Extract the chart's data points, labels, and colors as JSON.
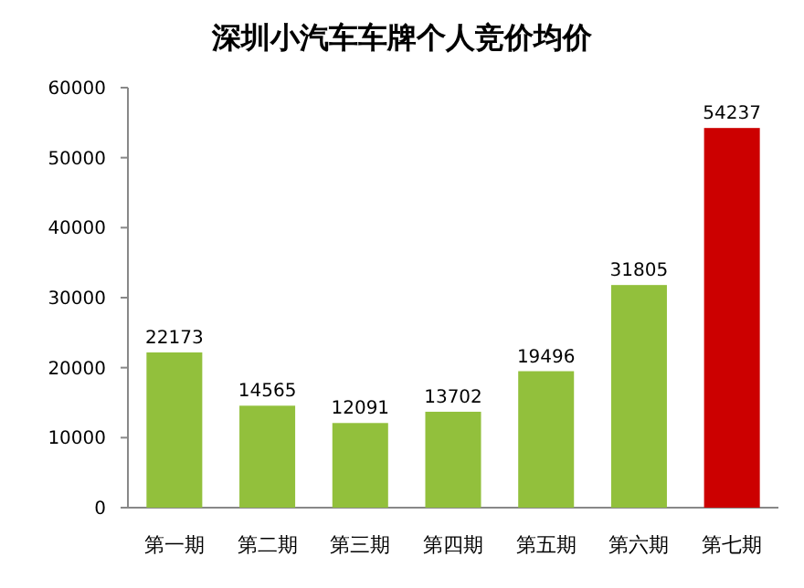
{
  "chart_data": {
    "type": "bar",
    "title": "深圳小汽车车牌个人竞价均价",
    "categories": [
      "第一期",
      "第二期",
      "第三期",
      "第四期",
      "第五期",
      "第六期",
      "第七期"
    ],
    "values": [
      22173,
      14565,
      12091,
      13702,
      19496,
      31805,
      54237
    ],
    "colors": [
      "#92c03c",
      "#92c03c",
      "#92c03c",
      "#92c03c",
      "#92c03c",
      "#92c03c",
      "#cc0000"
    ],
    "ylim": [
      0,
      60000
    ],
    "yticks": [
      0,
      10000,
      20000,
      30000,
      40000,
      50000,
      60000
    ],
    "data_labels": true
  }
}
